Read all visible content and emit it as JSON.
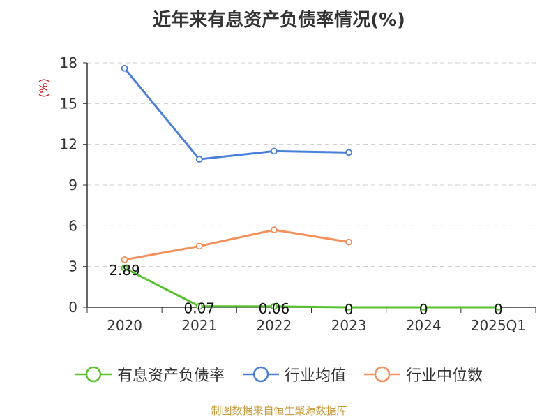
{
  "chart_data": {
    "type": "line",
    "title": "近年来有息资产负债率情况(%)",
    "ylabel": "(%)",
    "xlabel": "",
    "categories": [
      "2020",
      "2021",
      "2022",
      "2023",
      "2024",
      "2025Q1"
    ],
    "y_ticks": [
      "0",
      "3",
      "6",
      "9",
      "12",
      "15",
      "18"
    ],
    "ylim": [
      0,
      18
    ],
    "grid": true,
    "legend_position": "bottom",
    "series": [
      {
        "name": "有息资产负债率",
        "color": "#5ac12e",
        "values": [
          2.89,
          0.07,
          0.06,
          0,
          0,
          0
        ],
        "labels": [
          "2.89",
          "0.07",
          "0.06",
          "0",
          "0",
          "0"
        ]
      },
      {
        "name": "行业均值",
        "color": "#4a7fd9",
        "values": [
          17.6,
          10.9,
          11.5,
          11.4,
          null,
          null
        ],
        "labels": []
      },
      {
        "name": "行业中位数",
        "color": "#f5905c",
        "values": [
          3.5,
          4.5,
          5.7,
          4.8,
          null,
          null
        ],
        "labels": []
      }
    ]
  },
  "source": "制图数据来自恒生聚源数据库"
}
